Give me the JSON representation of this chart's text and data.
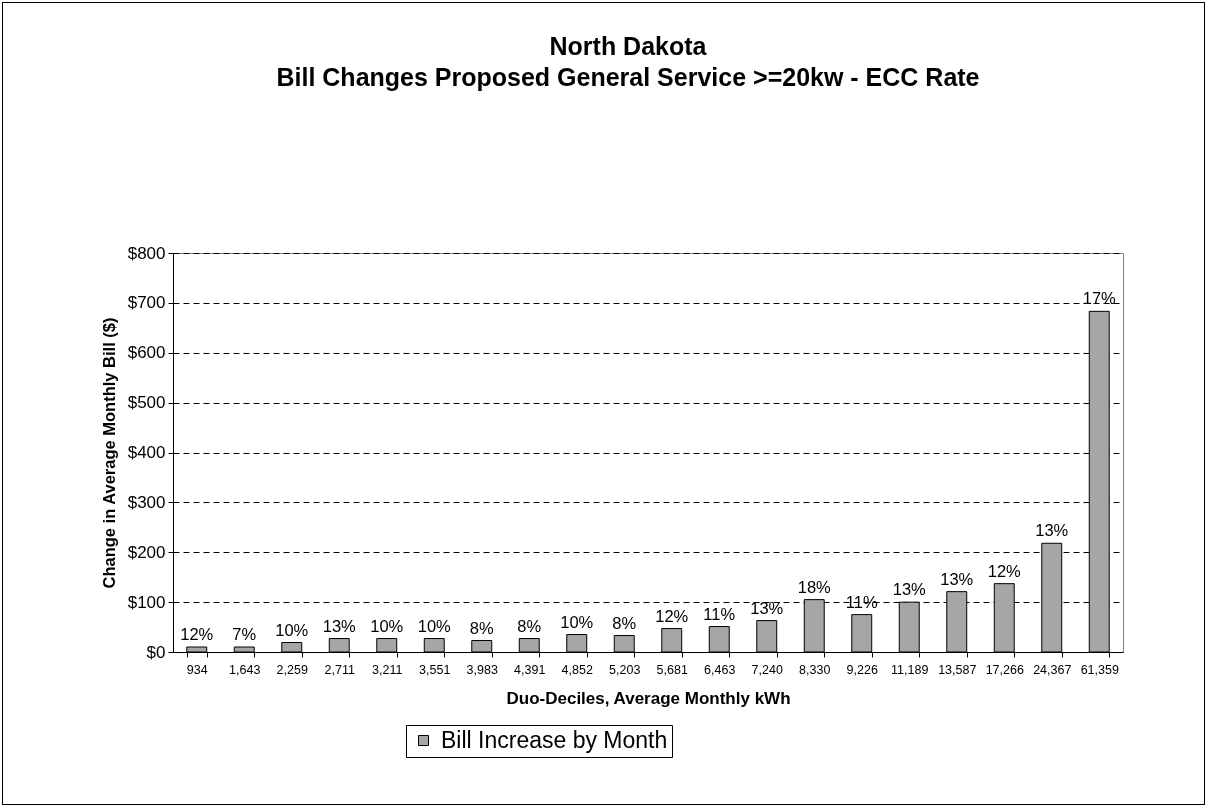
{
  "chart_data": {
    "type": "bar",
    "title": "North Dakota",
    "subtitle": "Bill Changes Proposed General Service >=20kw - ECC Rate",
    "xlabel": "Duo-Deciles, Average Monthly kWh",
    "ylabel": "Change in Average Monthly Bill ($)",
    "categories": [
      "934",
      "1,643",
      "2,259",
      "2,711",
      "3,211",
      "3,551",
      "3,983",
      "4,391",
      "4,852",
      "5,203",
      "5,681",
      "6,463",
      "7,240",
      "8,330",
      "9,226",
      "11,189",
      "13,587",
      "17,266",
      "24,367",
      "61,359"
    ],
    "series": [
      {
        "name": "Bill Increase by Month",
        "color": "#a6a6a6",
        "values": [
          10,
          10,
          19,
          27,
          27,
          27,
          23,
          27,
          35,
          33,
          47,
          51,
          63,
          105,
          75,
          100,
          121,
          137,
          218,
          683
        ]
      }
    ],
    "annotations": [
      {
        "text": "12%",
        "x": "934",
        "y": 10
      },
      {
        "text": "7%",
        "x": "1,643",
        "y": 10
      },
      {
        "text": "10%",
        "x": "2,259",
        "y": 19
      },
      {
        "text": "13%",
        "x": "2,711",
        "y": 27
      },
      {
        "text": "10%",
        "x": "3,211",
        "y": 27
      },
      {
        "text": "10%",
        "x": "3,551",
        "y": 27
      },
      {
        "text": "8%",
        "x": "3,983",
        "y": 23
      },
      {
        "text": "8%",
        "x": "4,391",
        "y": 27
      },
      {
        "text": "10%",
        "x": "4,852",
        "y": 35
      },
      {
        "text": "8%",
        "x": "5,203",
        "y": 33
      },
      {
        "text": "12%",
        "x": "5,681",
        "y": 47
      },
      {
        "text": "11%",
        "x": "6,463",
        "y": 51
      },
      {
        "text": "13%",
        "x": "7,240",
        "y": 63
      },
      {
        "text": "18%",
        "x": "8,330",
        "y": 105
      },
      {
        "text": "11%",
        "x": "9,226",
        "y": 75
      },
      {
        "text": "13%",
        "x": "11,189",
        "y": 100
      },
      {
        "text": "13%",
        "x": "13,587",
        "y": 121
      },
      {
        "text": "12%",
        "x": "17,266",
        "y": 137
      },
      {
        "text": "13%",
        "x": "24,367",
        "y": 218
      },
      {
        "text": "17%",
        "x": "61,359",
        "y": 683
      }
    ],
    "ylim": [
      0,
      800
    ],
    "yticks": [
      {
        "value": 0,
        "label": "$0"
      },
      {
        "value": 100,
        "label": "$100"
      },
      {
        "value": 200,
        "label": "$200"
      },
      {
        "value": 300,
        "label": "$300"
      },
      {
        "value": 400,
        "label": "$400"
      },
      {
        "value": 500,
        "label": "$500"
      },
      {
        "value": 600,
        "label": "$600"
      },
      {
        "value": 700,
        "label": "$700"
      },
      {
        "value": 800,
        "label": "$800"
      }
    ],
    "grid": "y",
    "legend": "bottom"
  }
}
